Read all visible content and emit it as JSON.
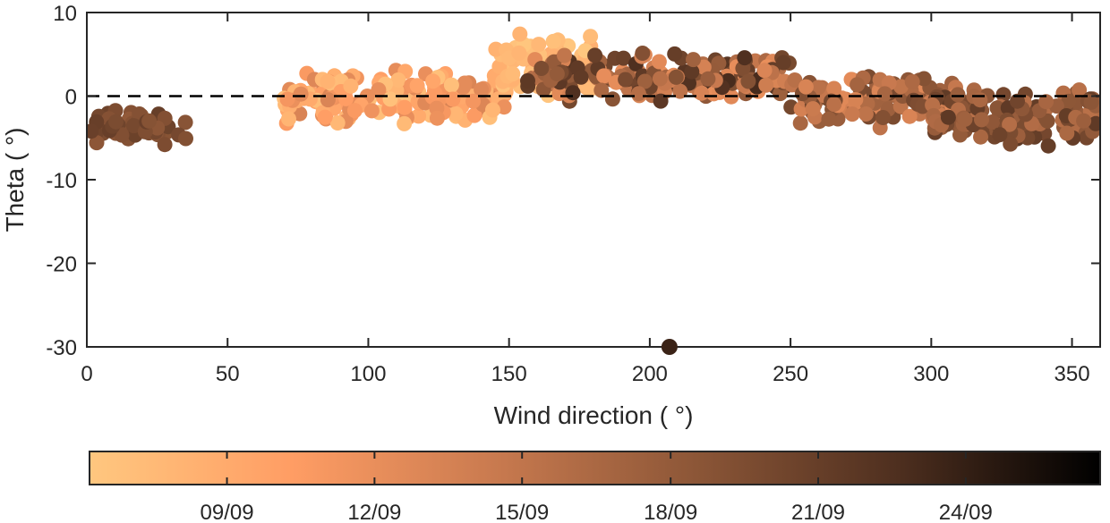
{
  "chart_data": {
    "type": "scatter",
    "title": "",
    "xlabel": "Wind direction (    °)",
    "ylabel": "Theta (   °)",
    "xlim": [
      0,
      360
    ],
    "ylim": [
      -30,
      10
    ],
    "xticks": [
      0,
      50,
      100,
      150,
      200,
      250,
      300,
      350
    ],
    "yticks": [
      10,
      0,
      -10,
      -20,
      -30
    ],
    "reference_line": {
      "y": 0,
      "style": "dashed",
      "color": "#000000"
    },
    "grid": false,
    "colorbar": {
      "orientation": "horizontal",
      "placement": "bottom",
      "colormap": "copper (reversed)",
      "colors": [
        "#FFC77F",
        "#FF9D64",
        "#C97A4F",
        "#8C5637",
        "#4E2F1F",
        "#000000"
      ],
      "color_range": [
        "06/09",
        "28/09"
      ],
      "tick_labels": [
        "09/09",
        "12/09",
        "15/09",
        "18/09",
        "21/09",
        "24/09"
      ],
      "tick_values": [
        0.136,
        0.282,
        0.428,
        0.575,
        0.721,
        0.867
      ]
    },
    "series": [
      {
        "marker": "filled-circle",
        "color_by": "date",
        "clusters": [
          {
            "x_range": [
              0,
              36
            ],
            "y_range": [
              -6.2,
              -1.2
            ],
            "color_value": [
              0.58,
              0.72
            ],
            "count": 55
          },
          {
            "x_range": [
              70,
              150
            ],
            "y_range": [
              -3.8,
              3.5
            ],
            "color_value": [
              0.03,
              0.35
            ],
            "count": 170
          },
          {
            "x_range": [
              145,
              180
            ],
            "y_range": [
              -0.5,
              7.8
            ],
            "color_value": [
              0.0,
              0.12
            ],
            "count": 70
          },
          {
            "x_range": [
              155,
              250
            ],
            "y_range": [
              -0.8,
              5.5
            ],
            "color_value": [
              0.28,
              0.82
            ],
            "count": 190
          },
          {
            "x_range": [
              250,
              310
            ],
            "y_range": [
              -4.0,
              2.8
            ],
            "color_value": [
              0.3,
              0.68
            ],
            "count": 140
          },
          {
            "x_range": [
              300,
              360
            ],
            "y_range": [
              -6.5,
              1.2
            ],
            "color_value": [
              0.45,
              0.75
            ],
            "count": 150
          }
        ],
        "outlier": {
          "x": 207,
          "y": -30,
          "color_value": 0.85
        }
      }
    ]
  }
}
